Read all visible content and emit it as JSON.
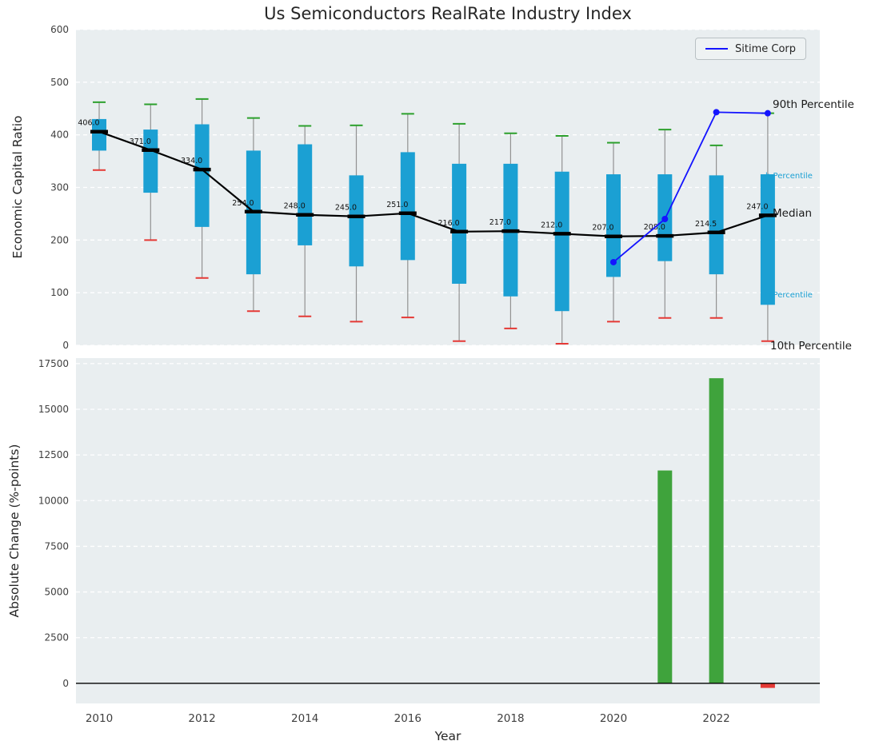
{
  "title": "Us Semiconductors RealRate Industry Index",
  "xlabel": "Year",
  "legend": {
    "sitime_label": "Sitime Corp"
  },
  "top_axis": {
    "ylabel": "Economic Capital Ratio",
    "ylim": [
      0,
      600
    ],
    "yticks": [
      "0",
      "100",
      "200",
      "300",
      "400",
      "500",
      "600"
    ]
  },
  "bottom_axis": {
    "ylabel": "Absolute Change (%-points)",
    "ylim": [
      -1100,
      17800
    ],
    "yticks": [
      "0",
      "2500",
      "5000",
      "7500",
      "10000",
      "12500",
      "15000",
      "17500"
    ]
  },
  "xticks": [
    "2010",
    "2012",
    "2014",
    "2016",
    "2018",
    "2020",
    "2022"
  ],
  "annotations": {
    "p90": "90th Percentile",
    "p75_clipped": "h Percentile",
    "median": "Median",
    "p25_clipped": "h Percentile",
    "p10": "10th Percentile"
  },
  "colors": {
    "box_fill": "#1ba0d3",
    "whisker": "#929292",
    "cap_top": "#2ca02c",
    "cap_bottom": "#e53935",
    "median": "#000000",
    "sitime_line": "#1414ff",
    "bar_positive": "#3fa33c",
    "bar_negative": "#e53935",
    "axes_bg": "#e9eef0",
    "grid": "#ffffff"
  },
  "chart_data": [
    {
      "type": "box",
      "axis": "top",
      "title": "Us Semiconductors RealRate Industry Index",
      "ylabel": "Economic Capital Ratio",
      "years": [
        2010,
        2011,
        2012,
        2013,
        2014,
        2015,
        2016,
        2017,
        2018,
        2019,
        2020,
        2021,
        2022,
        2023
      ],
      "p90": [
        462,
        458,
        468,
        432,
        417,
        418,
        440,
        421,
        403,
        398,
        385,
        410,
        380,
        441
      ],
      "p75": [
        430,
        410,
        420,
        370,
        382,
        323,
        367,
        345,
        345,
        330,
        325,
        325,
        323,
        325
      ],
      "median": [
        406,
        371,
        334,
        254,
        248,
        245,
        251,
        216,
        217,
        212,
        207,
        208,
        214.5,
        247
      ],
      "p25": [
        370,
        290,
        225,
        135,
        190,
        150,
        162,
        117,
        93,
        65,
        130,
        160,
        135,
        77
      ],
      "p10": [
        333,
        200,
        128,
        65,
        55,
        45,
        53,
        8,
        32,
        3,
        45,
        52,
        52,
        8
      ],
      "median_labels": [
        "406.0",
        "371.0",
        "334.0",
        "254.0",
        "248.0",
        "245.0",
        "251.0",
        "216.0",
        "217.0",
        "212.0",
        "207.0",
        "208.0",
        "214.5",
        "247.0"
      ]
    },
    {
      "type": "line",
      "axis": "top",
      "name": "Sitime Corp",
      "x": [
        2020,
        2021,
        2022,
        2023
      ],
      "y": [
        158,
        240,
        443,
        441
      ]
    },
    {
      "type": "bar",
      "axis": "bottom",
      "ylabel": "Absolute Change (%-points)",
      "x": [
        2021,
        2022,
        2023
      ],
      "values": [
        11650,
        16700,
        -250
      ]
    }
  ]
}
